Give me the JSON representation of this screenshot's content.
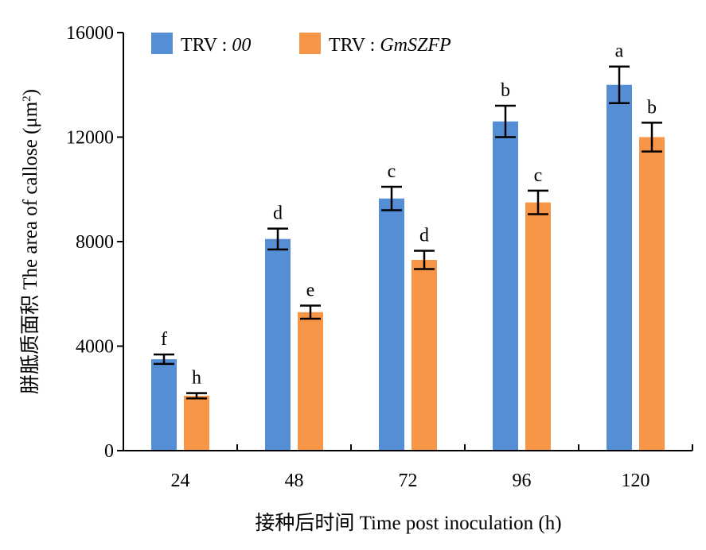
{
  "chart_data": {
    "type": "bar",
    "xlabel": "接种后时间 Time post inoculation (h)",
    "ylabel": {
      "text": "胼胝质面积 The area of callose (μm",
      "superscript": "2",
      "close": ")"
    },
    "categories": [
      "24",
      "48",
      "72",
      "96",
      "120"
    ],
    "ylim": [
      0,
      16000
    ],
    "yticks": [
      "0",
      "4000",
      "8000",
      "12000",
      "16000"
    ],
    "grid": false,
    "legend_position": "top-left",
    "series": [
      {
        "name_prefix": "TRV : ",
        "name_italic": "00",
        "color": "#558ed5",
        "values": [
          3500,
          8100,
          9650,
          12600,
          14000
        ],
        "errors": [
          180,
          400,
          450,
          600,
          700
        ],
        "labels": [
          "f",
          "d",
          "c",
          "b",
          "a"
        ]
      },
      {
        "name_prefix": "TRV : ",
        "name_italic": "GmSZFP",
        "color": "#f79646",
        "values": [
          2100,
          5300,
          7300,
          9500,
          12000
        ],
        "errors": [
          100,
          250,
          350,
          450,
          550
        ],
        "labels": [
          "h",
          "e",
          "d",
          "c",
          "b"
        ]
      }
    ]
  }
}
